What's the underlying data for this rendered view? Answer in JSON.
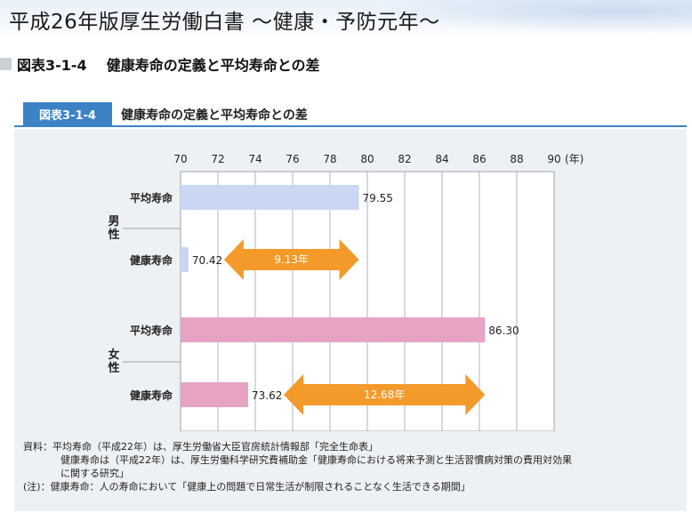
{
  "page": {
    "title": "平成26年版厚生労働白書 ～健康・予防元年～",
    "section_number": "図表3-1-4",
    "section_title": "健康寿命の定義と平均寿命との差"
  },
  "figure": {
    "badge": "図表3-1-4",
    "title": "健康寿命の定義と平均寿命との差"
  },
  "chart_data": {
    "type": "bar",
    "orientation": "horizontal",
    "x_ticks": [
      70,
      72,
      74,
      76,
      78,
      80,
      82,
      84,
      86,
      88,
      90
    ],
    "x_unit": "(年)",
    "xlim": [
      70,
      90
    ],
    "groups": [
      {
        "name": "男性",
        "bars": [
          {
            "label": "平均寿命",
            "value": 79.55,
            "value_label": "79.55",
            "color": "#c9d7f2"
          },
          {
            "label": "健康寿命",
            "value": 70.42,
            "value_label": "70.42",
            "color": "#c9d7f2"
          }
        ],
        "gap": {
          "from": 70.42,
          "to": 79.55,
          "label": "9.13年"
        }
      },
      {
        "name": "女性",
        "bars": [
          {
            "label": "平均寿命",
            "value": 86.3,
            "value_label": "86.30",
            "color": "#e6a3c4"
          },
          {
            "label": "健康寿命",
            "value": 73.62,
            "value_label": "73.62",
            "color": "#e6a3c4"
          }
        ],
        "gap": {
          "from": 73.62,
          "to": 86.3,
          "label": "12.68年"
        }
      }
    ],
    "arrow_color": "#f39a2b",
    "grid": true
  },
  "notes": {
    "line1": "資料：平均寿命（平成22年）は、厚生労働省大臣官房統計情報部「完全生命表」",
    "line2": "健康寿命は（平成22年）は、厚生労働科学研究費補助金「健康寿命における将来予測と生活習慣病対策の費用対効果",
    "line3": "に関する研究」",
    "line4": "(注)：健康寿命：人の寿命において「健康上の問題で日常生活が制限されることなく生活できる期間」"
  }
}
